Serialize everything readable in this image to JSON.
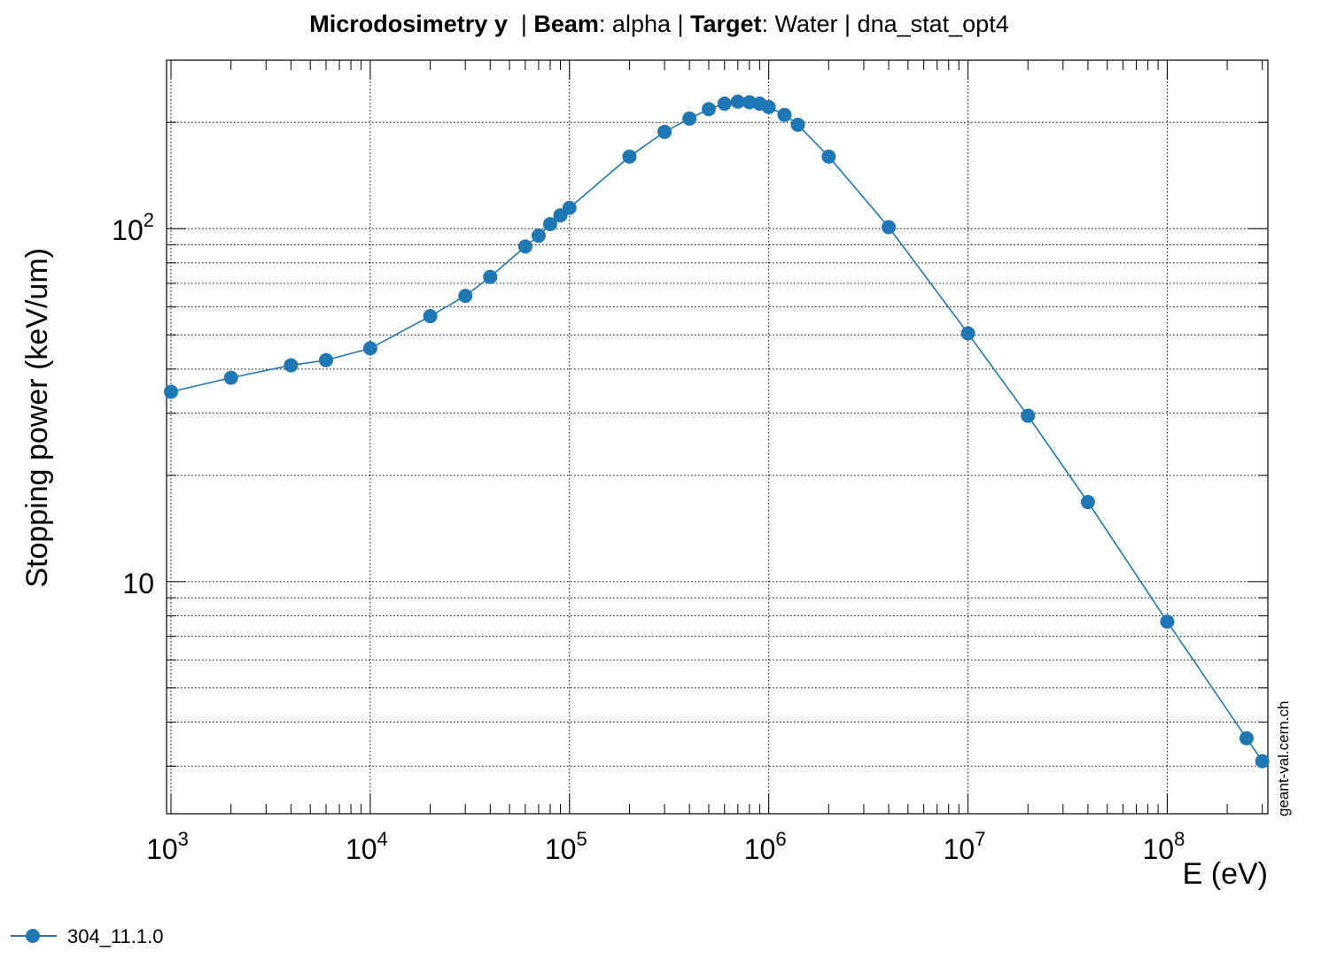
{
  "title": {
    "label1": "Microdosimetry y",
    "sep1": "  | ",
    "label2": "Beam",
    "value2": ": alpha | ",
    "label3": "Target",
    "value3": ": Water | dna_stat_opt4"
  },
  "watermark": "geant-val.cern.ch",
  "colors": {
    "series": "#1f77b4",
    "grid": "#000000",
    "background": "#ffffff"
  },
  "chart_data": {
    "type": "line",
    "xlabel": "E (eV)",
    "ylabel": "Stopping power (keV/um)",
    "xscale": "log",
    "yscale": "log",
    "xlim": [
      950,
      320000000
    ],
    "ylim": [
      2.2,
      300
    ],
    "grid": true,
    "legend_position": "bottom-left",
    "x_ticks": [
      {
        "base": "10",
        "exp": "3"
      },
      {
        "base": "10",
        "exp": "4"
      },
      {
        "base": "10",
        "exp": "5"
      },
      {
        "base": "10",
        "exp": "6"
      },
      {
        "base": "10",
        "exp": "7"
      },
      {
        "base": "10",
        "exp": "8"
      }
    ],
    "y_ticks": [
      {
        "base": "10",
        "exp": ""
      },
      {
        "base": "10",
        "exp": "2"
      }
    ],
    "series": [
      {
        "name": "304_11.1.0",
        "x": [
          1000,
          2000,
          4000,
          6000,
          10000,
          20000,
          30000,
          40000,
          60000,
          70000,
          80000,
          90000,
          100000,
          200000,
          300000,
          400000,
          500000,
          600000,
          700000,
          800000,
          900000,
          1000000,
          1200000,
          1400000,
          2000000,
          4000000,
          10000000,
          20000000,
          40000000,
          100000000,
          250000000,
          300000000
        ],
        "y": [
          34.5,
          37.8,
          41.0,
          42.4,
          45.8,
          56.5,
          64.5,
          73.0,
          89.0,
          95.5,
          103.0,
          109.0,
          114.5,
          160.0,
          188.0,
          205.0,
          218.0,
          226.0,
          229.0,
          228.0,
          226.0,
          221.0,
          210.0,
          197.0,
          160.0,
          101.0,
          50.5,
          29.5,
          16.8,
          7.7,
          3.6,
          3.1
        ]
      }
    ]
  }
}
